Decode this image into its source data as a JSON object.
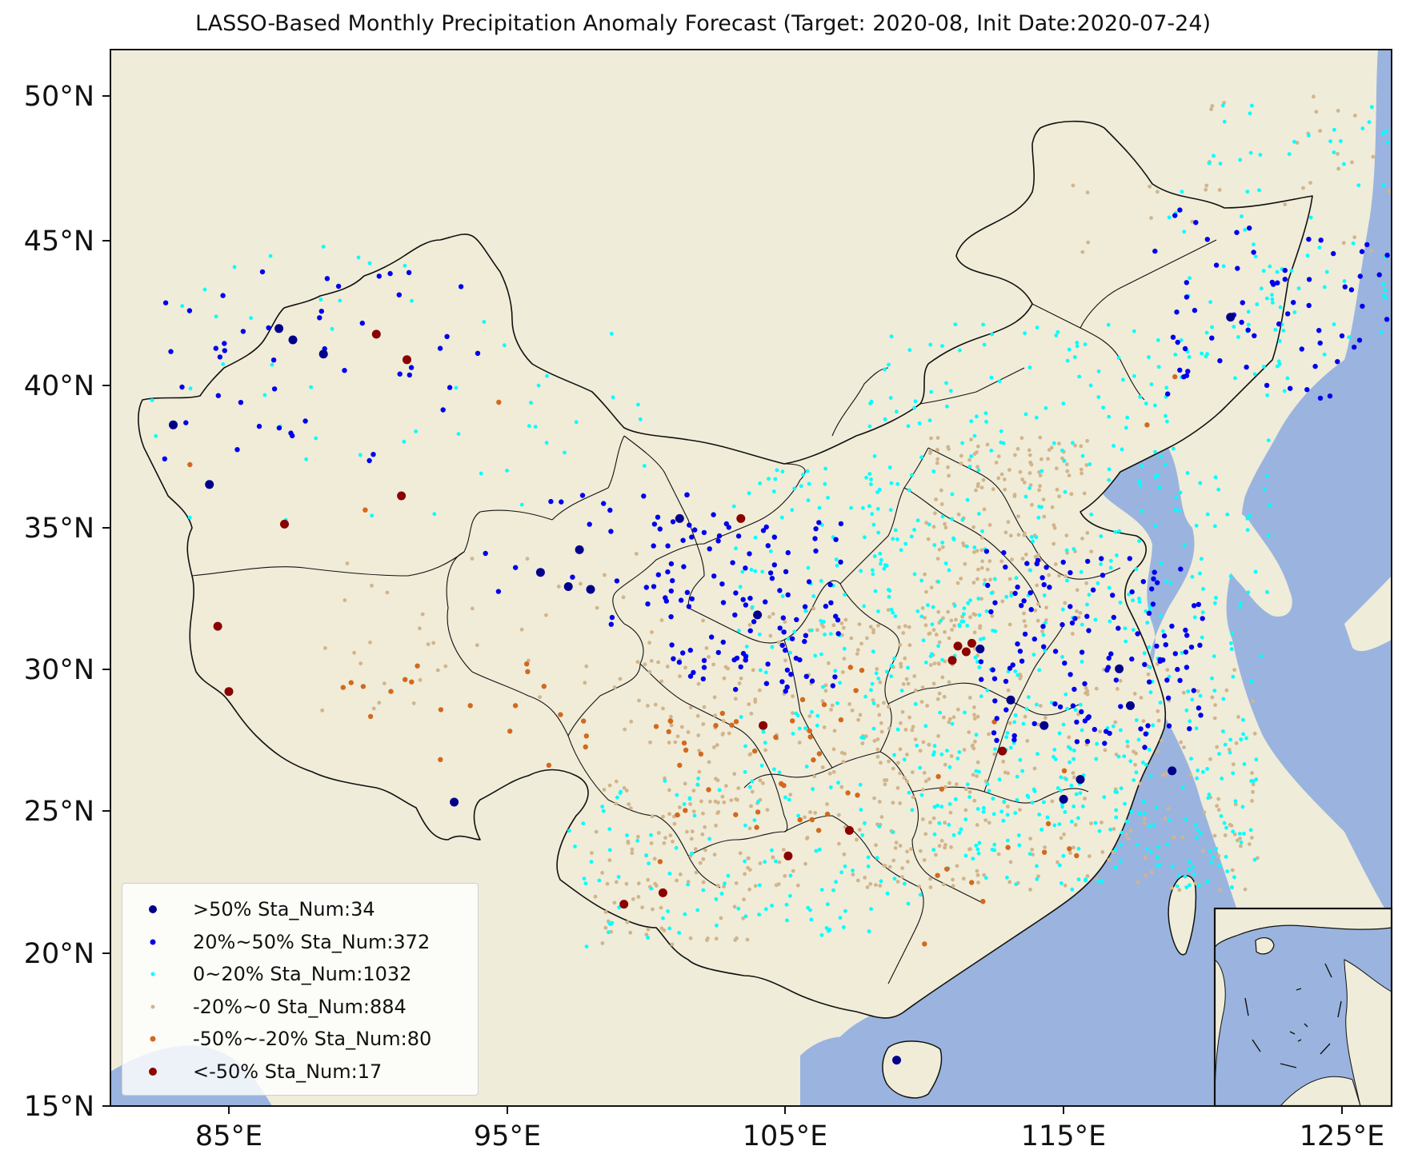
{
  "title": "LASSO-Based Monthly Precipitation Anomaly Forecast (Target: 2020-08, Init Date:2020-07-24)",
  "axes": {
    "lon_range": [
      81,
      128
    ],
    "lat_range": [
      15,
      52
    ],
    "x_ticks": [
      "85°E",
      "95°E",
      "105°E",
      "115°E",
      "125°E"
    ],
    "y_ticks": [
      "50°N",
      "45°N",
      "40°N",
      "35°N",
      "30°N",
      "25°N",
      "20°N",
      "15°N"
    ]
  },
  "colors": {
    "land": "#efecd9",
    "ocean": "#9ab4df",
    "border": "#111111",
    "china_fill": "#f0ecd8"
  },
  "legend": {
    "placement": "lower-left",
    "items": [
      {
        "label": ">50% Sta_Num:34",
        "color": "#00008b"
      },
      {
        "label": "20%~50% Sta_Num:372",
        "color": "#0000ee"
      },
      {
        "label": "0~20% Sta_Num:1032",
        "color": "#00ffff"
      },
      {
        "label": "-20%~0 Sta_Num:884",
        "color": "#d2b48c"
      },
      {
        "label": "-50%~-20% Sta_Num:80",
        "color": "#d2691e"
      },
      {
        "label": "<-50% Sta_Num:17",
        "color": "#8b0000"
      }
    ]
  },
  "inset": {
    "region": "South China Sea"
  },
  "chart_data": {
    "type": "scatter",
    "categories": [
      ">50%",
      "20%~50%",
      "0~20%",
      "-20%~0",
      "-50%~-20%",
      "<-50%"
    ],
    "station_counts": [
      34,
      372,
      1032,
      884,
      80,
      17
    ],
    "x_axis": "longitude (°E)",
    "y_axis": "latitude (°N)",
    "xlim": [
      81,
      128
    ],
    "ylim": [
      15,
      52
    ],
    "representative_points": {
      ">50%": [
        [
          83.0,
          38.4
        ],
        [
          84.3,
          36.3
        ],
        [
          86.8,
          41.8
        ],
        [
          87.3,
          41.4
        ],
        [
          88.4,
          40.9
        ],
        [
          93.1,
          25.1
        ],
        [
          96.2,
          33.2
        ],
        [
          97.2,
          32.7
        ],
        [
          97.6,
          34.0
        ],
        [
          98.0,
          32.6
        ],
        [
          101.2,
          35.1
        ],
        [
          104.0,
          31.7
        ],
        [
          113.1,
          28.7
        ],
        [
          114.3,
          27.8
        ],
        [
          117.0,
          29.8
        ],
        [
          117.4,
          28.5
        ],
        [
          121.0,
          42.2
        ],
        [
          118.9,
          26.2
        ],
        [
          115.6,
          25.9
        ],
        [
          115.0,
          25.2
        ],
        [
          109.0,
          16.0
        ],
        [
          112.0,
          30.5
        ]
      ],
      "<-50%": [
        [
          90.3,
          41.6
        ],
        [
          91.4,
          40.7
        ],
        [
          87.0,
          34.9
        ],
        [
          91.2,
          35.9
        ],
        [
          84.6,
          31.3
        ],
        [
          85.0,
          29.0
        ],
        [
          103.4,
          35.1
        ],
        [
          104.2,
          27.8
        ],
        [
          107.3,
          24.1
        ],
        [
          105.1,
          23.2
        ],
        [
          100.6,
          21.9
        ],
        [
          99.2,
          21.5
        ],
        [
          111.7,
          30.7
        ],
        [
          112.8,
          26.9
        ],
        [
          111.0,
          30.1
        ],
        [
          111.5,
          30.4
        ],
        [
          111.2,
          30.6
        ]
      ],
      "-50%~-20%": [
        [
          89.9,
          35.4
        ],
        [
          94.7,
          39.2
        ],
        [
          83.6,
          37.0
        ],
        [
          92.6,
          26.6
        ],
        [
          95.1,
          27.6
        ],
        [
          96.5,
          26.4
        ],
        [
          101.2,
          26.4
        ],
        [
          102.5,
          27.8
        ],
        [
          103.9,
          26.9
        ],
        [
          100.5,
          23.0
        ],
        [
          105.9,
          27.4
        ],
        [
          107.0,
          28.0
        ],
        [
          110.5,
          26.0
        ],
        [
          119.0,
          40.1
        ],
        [
          118.0,
          38.4
        ],
        [
          113.0,
          23.5
        ],
        [
          112.1,
          21.6
        ],
        [
          110.0,
          20.1
        ]
      ]
    }
  }
}
